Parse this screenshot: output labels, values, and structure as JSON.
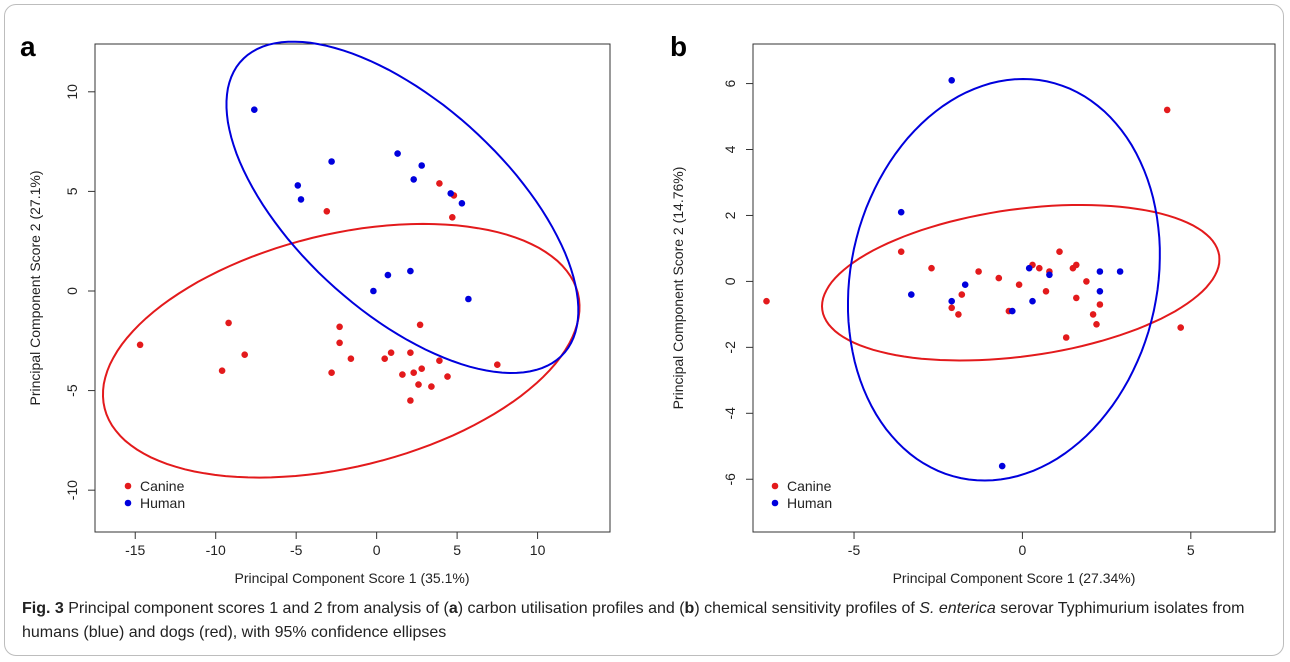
{
  "panels": [
    {
      "letter": "a",
      "xlabel": "Principal Component Score 1 (35.1%)",
      "ylabel": "Principal Component Score 2 (27.1%)",
      "legend": [
        "Canine",
        "Human"
      ]
    },
    {
      "letter": "b",
      "xlabel": "Principal Component Score 1 (27.34%)",
      "ylabel": "Principal Component Score 2 (14.76%)",
      "legend": [
        "Canine",
        "Human"
      ]
    }
  ],
  "caption": {
    "lead": "Fig. 3",
    "t1": " Principal component scores 1 and 2 from analysis of (",
    "a": "a",
    "t2": ") carbon utilisation profiles and (",
    "b": "b",
    "t3": ") chemical sensitivity profiles of ",
    "italic": "S. enterica",
    "t4": " serovar Typhimurium isolates from humans (blue) and dogs (red), with 95% confidence ellipses"
  },
  "chart_data": [
    {
      "type": "scatter",
      "xlim": [
        -17.5,
        14.5
      ],
      "ylim": [
        -12.1,
        12.4
      ],
      "xticks": [
        -15,
        -10,
        -5,
        0,
        5,
        10
      ],
      "yticks": [
        -10,
        -5,
        0,
        5,
        10
      ],
      "grid": false,
      "legend_position": "bottom-left",
      "series": [
        {
          "name": "Canine",
          "color": "#e31a1c",
          "points": [
            [
              -14.7,
              -2.7
            ],
            [
              -9.2,
              -1.6
            ],
            [
              -9.6,
              -4.0
            ],
            [
              -8.2,
              -3.2
            ],
            [
              -3.1,
              4.0
            ],
            [
              -2.8,
              -4.1
            ],
            [
              -2.3,
              -1.8
            ],
            [
              -2.3,
              -2.6
            ],
            [
              -1.6,
              -3.4
            ],
            [
              0.5,
              -3.4
            ],
            [
              0.9,
              -3.1
            ],
            [
              1.6,
              -4.2
            ],
            [
              2.1,
              -3.1
            ],
            [
              2.1,
              -5.5
            ],
            [
              2.3,
              -4.1
            ],
            [
              2.6,
              -4.7
            ],
            [
              2.8,
              -3.9
            ],
            [
              2.7,
              -1.7
            ],
            [
              3.4,
              -4.8
            ],
            [
              3.9,
              -3.5
            ],
            [
              4.4,
              -4.3
            ],
            [
              3.9,
              5.4
            ],
            [
              4.8,
              4.8
            ],
            [
              4.7,
              3.7
            ],
            [
              7.5,
              -3.7
            ]
          ],
          "ellipse": {
            "cx": -2.2,
            "cy": -3.0,
            "rx": 15.0,
            "ry": 5.9,
            "angle_deg": 10
          }
        },
        {
          "name": "Human",
          "color": "#0000dd",
          "points": [
            [
              -7.6,
              9.1
            ],
            [
              -4.9,
              5.3
            ],
            [
              -4.7,
              4.6
            ],
            [
              -2.8,
              6.5
            ],
            [
              -0.2,
              0.0
            ],
            [
              0.7,
              0.8
            ],
            [
              1.3,
              6.9
            ],
            [
              2.1,
              1.0
            ],
            [
              2.3,
              5.6
            ],
            [
              2.8,
              6.3
            ],
            [
              4.6,
              4.9
            ],
            [
              5.3,
              4.4
            ],
            [
              5.7,
              -0.4
            ]
          ],
          "ellipse": {
            "cx": 1.6,
            "cy": 4.2,
            "rx": 12.5,
            "ry": 5.7,
            "angle_deg": -33
          }
        }
      ]
    },
    {
      "type": "scatter",
      "xlim": [
        -8.0,
        7.5
      ],
      "ylim": [
        -7.6,
        7.2
      ],
      "xticks": [
        -5,
        0,
        5
      ],
      "yticks": [
        -6,
        -4,
        -2,
        0,
        2,
        4,
        6
      ],
      "grid": false,
      "legend_position": "bottom-left",
      "series": [
        {
          "name": "Canine",
          "color": "#e31a1c",
          "points": [
            [
              -7.6,
              -0.6
            ],
            [
              -3.6,
              0.9
            ],
            [
              -2.7,
              0.4
            ],
            [
              -2.1,
              -0.8
            ],
            [
              -1.9,
              -1.0
            ],
            [
              -1.8,
              -0.4
            ],
            [
              -1.3,
              0.3
            ],
            [
              -0.7,
              0.1
            ],
            [
              -0.4,
              -0.9
            ],
            [
              -0.1,
              -0.1
            ],
            [
              0.3,
              0.5
            ],
            [
              0.5,
              0.4
            ],
            [
              0.7,
              -0.3
            ],
            [
              0.8,
              0.3
            ],
            [
              1.1,
              0.9
            ],
            [
              1.3,
              -1.7
            ],
            [
              1.5,
              0.4
            ],
            [
              1.6,
              0.5
            ],
            [
              1.6,
              -0.5
            ],
            [
              1.9,
              0.0
            ],
            [
              2.1,
              -1.0
            ],
            [
              2.2,
              -1.3
            ],
            [
              2.3,
              -0.7
            ],
            [
              4.3,
              5.2
            ],
            [
              4.7,
              -1.4
            ]
          ],
          "ellipse": {
            "cx": -0.05,
            "cy": -0.04,
            "rx": 5.95,
            "ry": 2.23,
            "angle_deg": 8
          }
        },
        {
          "name": "Human",
          "color": "#0000dd",
          "points": [
            [
              -3.6,
              2.1
            ],
            [
              -3.3,
              -0.4
            ],
            [
              -2.1,
              6.1
            ],
            [
              -2.1,
              -0.6
            ],
            [
              -1.7,
              -0.1
            ],
            [
              -0.6,
              -5.6
            ],
            [
              -0.3,
              -0.9
            ],
            [
              0.2,
              0.4
            ],
            [
              0.3,
              -0.6
            ],
            [
              0.8,
              0.2
            ],
            [
              2.3,
              0.3
            ],
            [
              2.3,
              -0.3
            ],
            [
              2.9,
              0.3
            ]
          ],
          "ellipse": {
            "cx": -0.55,
            "cy": 0.05,
            "rx": 6.15,
            "ry": 4.55,
            "angle_deg": 78
          }
        }
      ]
    }
  ]
}
